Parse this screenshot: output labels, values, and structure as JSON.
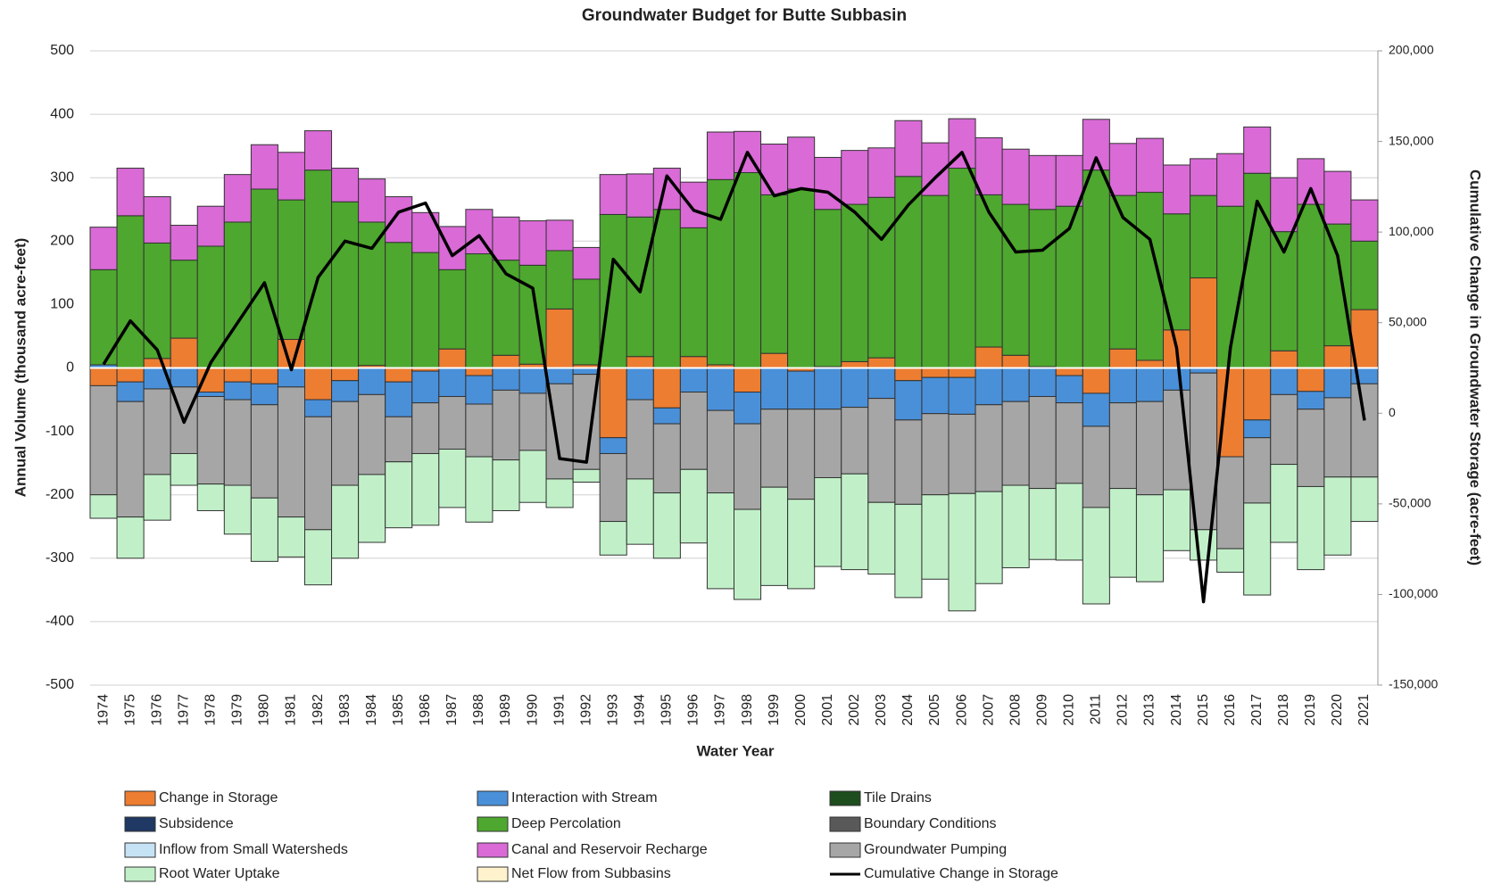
{
  "chart_data": {
    "type": "bar",
    "title": "Groundwater Budget for Butte Subbasin",
    "x_label": "Water Year",
    "y_label": "Annual Volume (thousand acre-feet)",
    "y2_label": "Cumulative Change in Groundwater Storage (acre-feet)",
    "categories": [
      "1974",
      "1975",
      "1976",
      "1977",
      "1978",
      "1979",
      "1980",
      "1981",
      "1982",
      "1983",
      "1984",
      "1985",
      "1986",
      "1987",
      "1988",
      "1989",
      "1990",
      "1991",
      "1992",
      "1993",
      "1994",
      "1995",
      "1996",
      "1997",
      "1998",
      "1999",
      "2000",
      "2001",
      "2002",
      "2003",
      "2004",
      "2005",
      "2006",
      "2007",
      "2008",
      "2009",
      "2010",
      "2011",
      "2012",
      "2013",
      "2014",
      "2015",
      "2016",
      "2017",
      "2018",
      "2019",
      "2020",
      "2021"
    ],
    "ylim": [
      -500,
      500
    ],
    "yticks": [
      -500,
      -400,
      -300,
      -200,
      -100,
      0,
      100,
      200,
      300,
      400,
      500
    ],
    "y2lim": [
      -150000,
      200000
    ],
    "y2ticks": [
      {
        "value": -150000,
        "label": "-150,000"
      },
      {
        "value": -100000,
        "label": "-100,000"
      },
      {
        "value": -50000,
        "label": "-50,000"
      },
      0,
      {
        "value": 50000,
        "label": "50,000"
      },
      {
        "value": 100000,
        "label": "100,000"
      },
      {
        "value": 150000,
        "label": "150,000"
      },
      {
        "value": 200000,
        "label": "200,000"
      }
    ],
    "grid": true,
    "stacked": true,
    "series": [
      {
        "name": "Change in Storage",
        "color": "#ed7d31",
        "values": [
          -28,
          -22,
          15,
          47,
          -38,
          -22,
          -25,
          45,
          -50,
          -20,
          4,
          -22,
          -5,
          30,
          -12,
          20,
          6,
          93,
          5,
          -110,
          18,
          -63,
          18,
          5,
          -38,
          23,
          -5,
          2,
          10,
          16,
          -20,
          -15,
          -15,
          33,
          20,
          2,
          -12,
          -40,
          30,
          12,
          60,
          142,
          -140,
          -82,
          27,
          -37,
          35,
          92
        ]
      },
      {
        "name": "Interaction with Stream",
        "color": "#4a90d9",
        "values": [
          5,
          -31,
          -33,
          -30,
          -7,
          -28,
          -33,
          -30,
          -27,
          -33,
          -42,
          -55,
          -50,
          -45,
          -45,
          -35,
          -40,
          -25,
          -10,
          -25,
          -50,
          -25,
          -38,
          -67,
          -50,
          -65,
          -60,
          -65,
          -62,
          -48,
          -62,
          -57,
          -58,
          -58,
          -53,
          -45,
          -43,
          -52,
          -55,
          -53,
          -35,
          -8,
          0,
          -28,
          -42,
          -28,
          -47,
          -25
        ]
      },
      {
        "name": "Tile Drains",
        "color": "#1e4d1e",
        "values": [
          0,
          0,
          0,
          0,
          0,
          0,
          0,
          0,
          0,
          0,
          0,
          0,
          0,
          0,
          0,
          0,
          0,
          0,
          0,
          0,
          0,
          0,
          0,
          0,
          0,
          0,
          0,
          0,
          0,
          0,
          0,
          0,
          0,
          0,
          0,
          0,
          0,
          0,
          0,
          0,
          0,
          0,
          0,
          0,
          0,
          0,
          0,
          0
        ]
      },
      {
        "name": "Subsidence",
        "color": "#1f3864",
        "values": [
          0,
          0,
          0,
          0,
          0,
          0,
          0,
          0,
          0,
          0,
          0,
          0,
          0,
          0,
          0,
          0,
          0,
          0,
          0,
          0,
          0,
          0,
          0,
          0,
          0,
          0,
          0,
          0,
          0,
          0,
          0,
          0,
          0,
          0,
          0,
          0,
          0,
          0,
          0,
          0,
          0,
          0,
          0,
          0,
          0,
          0,
          0,
          0
        ]
      },
      {
        "name": "Deep Percolation",
        "color": "#4ea72e",
        "values": [
          150,
          240,
          182,
          123,
          192,
          230,
          282,
          220,
          312,
          262,
          226,
          198,
          182,
          125,
          180,
          150,
          156,
          92,
          135,
          242,
          220,
          250,
          203,
          292,
          308,
          250,
          282,
          248,
          248,
          253,
          302,
          272,
          315,
          240,
          238,
          248,
          255,
          312,
          242,
          265,
          183,
          130,
          255,
          307,
          188,
          258,
          192,
          108
        ]
      },
      {
        "name": "Boundary Conditions",
        "color": "#595959",
        "values": [
          0,
          0,
          0,
          0,
          0,
          0,
          0,
          0,
          0,
          0,
          0,
          0,
          0,
          0,
          0,
          0,
          0,
          0,
          0,
          0,
          0,
          0,
          0,
          0,
          0,
          0,
          0,
          0,
          0,
          0,
          0,
          0,
          0,
          0,
          0,
          0,
          0,
          0,
          0,
          0,
          0,
          0,
          0,
          0,
          0,
          0,
          0,
          0
        ]
      },
      {
        "name": "Inflow from Small Watersheds",
        "color": "#c6e2f5",
        "values": [
          0,
          0,
          0,
          0,
          0,
          0,
          0,
          0,
          0,
          0,
          0,
          0,
          0,
          0,
          0,
          0,
          0,
          0,
          0,
          0,
          0,
          0,
          0,
          0,
          0,
          0,
          0,
          0,
          0,
          0,
          0,
          0,
          0,
          0,
          0,
          0,
          0,
          0,
          0,
          0,
          0,
          0,
          0,
          0,
          0,
          0,
          0,
          0
        ]
      },
      {
        "name": "Canal and Reservoir Recharge",
        "color": "#d96ad6",
        "values": [
          67,
          75,
          73,
          55,
          63,
          75,
          70,
          75,
          62,
          53,
          68,
          72,
          63,
          68,
          70,
          68,
          70,
          48,
          50,
          63,
          68,
          65,
          72,
          75,
          65,
          80,
          82,
          82,
          85,
          78,
          88,
          83,
          78,
          90,
          87,
          85,
          80,
          80,
          82,
          85,
          77,
          58,
          83,
          73,
          85,
          72,
          83,
          65
        ]
      },
      {
        "name": "Groundwater Pumping",
        "color": "#a6a6a6",
        "values": [
          -172,
          -182,
          -135,
          -105,
          -138,
          -135,
          -147,
          -205,
          -178,
          -132,
          -126,
          -71,
          -80,
          -83,
          -83,
          -110,
          -90,
          -150,
          -150,
          -107,
          -125,
          -109,
          -122,
          -130,
          -135,
          -123,
          -142,
          -108,
          -105,
          -164,
          -133,
          -128,
          -125,
          -137,
          -132,
          -145,
          -127,
          -128,
          -135,
          -147,
          -157,
          -247,
          -145,
          -103,
          -110,
          -122,
          -125,
          -147
        ]
      },
      {
        "name": "Root Water Uptake",
        "color": "#c1f0c8",
        "values": [
          -37,
          -65,
          -72,
          -50,
          -42,
          -77,
          -100,
          -63,
          -87,
          -115,
          -107,
          -104,
          -113,
          -92,
          -103,
          -80,
          -82,
          -45,
          -20,
          -53,
          -103,
          -103,
          -116,
          -151,
          -142,
          -155,
          -141,
          -140,
          -151,
          -113,
          -147,
          -133,
          -185,
          -145,
          -130,
          -112,
          -121,
          -152,
          -140,
          -137,
          -96,
          -48,
          -37,
          -145,
          -123,
          -131,
          -123,
          -70
        ]
      },
      {
        "name": "Net Flow from Subbasins",
        "color": "#fff2cc",
        "values": [
          0,
          0,
          0,
          0,
          0,
          0,
          0,
          0,
          0,
          0,
          0,
          0,
          0,
          0,
          0,
          0,
          0,
          0,
          0,
          0,
          0,
          0,
          0,
          0,
          0,
          0,
          0,
          0,
          0,
          0,
          0,
          0,
          0,
          0,
          0,
          0,
          0,
          0,
          0,
          0,
          0,
          0,
          0,
          0,
          0,
          0,
          0,
          0
        ]
      },
      {
        "name": "Cumulative Change in Storage",
        "color": "#000000",
        "type": "line",
        "axis": "y2",
        "values": [
          27000,
          51000,
          35000,
          -5000,
          28000,
          50000,
          72000,
          24000,
          75000,
          95000,
          91000,
          111000,
          116000,
          87000,
          98000,
          77000,
          69000,
          -25000,
          -27000,
          85000,
          67000,
          131000,
          112000,
          107000,
          144000,
          120000,
          124000,
          122000,
          111000,
          96000,
          115000,
          130000,
          144000,
          111000,
          89000,
          90000,
          102000,
          141000,
          108000,
          96000,
          36000,
          -104000,
          36000,
          117000,
          89000,
          124000,
          87000,
          -4000
        ]
      }
    ]
  }
}
